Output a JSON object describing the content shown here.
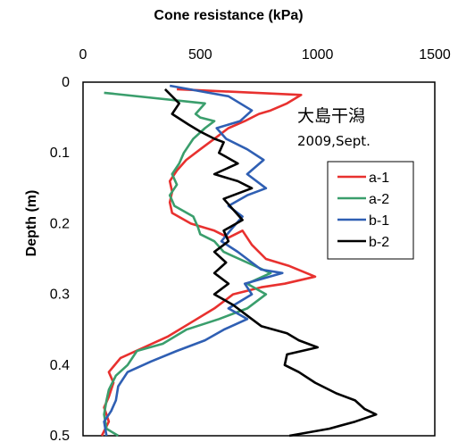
{
  "chart_data": {
    "type": "line",
    "title": "",
    "xlabel": "Cone resistance (kPa)",
    "ylabel": "Depth (m)",
    "xlim": [
      0,
      1500
    ],
    "ylim": [
      0,
      0.5
    ],
    "x_ticks": [
      "0",
      "500",
      "1000",
      "1500"
    ],
    "y_ticks": [
      "0",
      "0.1",
      "0.2",
      "0.3",
      "0.4",
      "0.5"
    ],
    "x_axis_position": "top",
    "y_axis_inverted": true,
    "grid": false,
    "legend_position": "right",
    "annotations": [
      "大島干潟",
      "2009,Sept."
    ],
    "series": [
      {
        "name": "a-1",
        "color": "#e8312f",
        "points": [
          [
            400,
            0.01
          ],
          [
            930,
            0.018
          ],
          [
            870,
            0.03
          ],
          [
            800,
            0.04
          ],
          [
            750,
            0.045
          ],
          [
            690,
            0.055
          ],
          [
            620,
            0.065
          ],
          [
            560,
            0.08
          ],
          [
            500,
            0.095
          ],
          [
            440,
            0.11
          ],
          [
            400,
            0.125
          ],
          [
            370,
            0.14
          ],
          [
            380,
            0.155
          ],
          [
            370,
            0.17
          ],
          [
            380,
            0.185
          ],
          [
            460,
            0.2
          ],
          [
            560,
            0.21
          ],
          [
            620,
            0.22
          ],
          [
            680,
            0.21
          ],
          [
            720,
            0.23
          ],
          [
            780,
            0.25
          ],
          [
            880,
            0.26
          ],
          [
            990,
            0.275
          ],
          [
            860,
            0.285
          ],
          [
            760,
            0.29
          ],
          [
            640,
            0.3
          ],
          [
            560,
            0.32
          ],
          [
            460,
            0.34
          ],
          [
            360,
            0.36
          ],
          [
            260,
            0.375
          ],
          [
            160,
            0.39
          ],
          [
            110,
            0.41
          ],
          [
            130,
            0.425
          ],
          [
            110,
            0.445
          ],
          [
            90,
            0.46
          ],
          [
            110,
            0.48
          ],
          [
            80,
            0.5
          ]
        ]
      },
      {
        "name": "a-2",
        "color": "#3a9e6c",
        "points": [
          [
            90,
            0.015
          ],
          [
            520,
            0.03
          ],
          [
            480,
            0.045
          ],
          [
            500,
            0.05
          ],
          [
            560,
            0.055
          ],
          [
            520,
            0.065
          ],
          [
            470,
            0.08
          ],
          [
            430,
            0.1
          ],
          [
            410,
            0.115
          ],
          [
            380,
            0.13
          ],
          [
            400,
            0.145
          ],
          [
            370,
            0.16
          ],
          [
            390,
            0.175
          ],
          [
            470,
            0.19
          ],
          [
            490,
            0.205
          ],
          [
            500,
            0.215
          ],
          [
            560,
            0.225
          ],
          [
            600,
            0.24
          ],
          [
            700,
            0.255
          ],
          [
            800,
            0.27
          ],
          [
            700,
            0.285
          ],
          [
            780,
            0.3
          ],
          [
            700,
            0.32
          ],
          [
            580,
            0.335
          ],
          [
            440,
            0.35
          ],
          [
            340,
            0.37
          ],
          [
            230,
            0.38
          ],
          [
            190,
            0.4
          ],
          [
            140,
            0.415
          ],
          [
            110,
            0.435
          ],
          [
            100,
            0.45
          ],
          [
            90,
            0.47
          ],
          [
            100,
            0.49
          ],
          [
            150,
            0.5
          ]
        ]
      },
      {
        "name": "b-1",
        "color": "#2f5fb3",
        "points": [
          [
            370,
            0.005
          ],
          [
            620,
            0.02
          ],
          [
            720,
            0.04
          ],
          [
            670,
            0.055
          ],
          [
            570,
            0.065
          ],
          [
            610,
            0.08
          ],
          [
            700,
            0.095
          ],
          [
            770,
            0.11
          ],
          [
            700,
            0.13
          ],
          [
            780,
            0.15
          ],
          [
            700,
            0.16
          ],
          [
            620,
            0.175
          ],
          [
            680,
            0.19
          ],
          [
            640,
            0.205
          ],
          [
            590,
            0.225
          ],
          [
            660,
            0.24
          ],
          [
            720,
            0.255
          ],
          [
            760,
            0.265
          ],
          [
            850,
            0.27
          ],
          [
            690,
            0.285
          ],
          [
            720,
            0.3
          ],
          [
            620,
            0.32
          ],
          [
            700,
            0.335
          ],
          [
            600,
            0.35
          ],
          [
            520,
            0.365
          ],
          [
            400,
            0.38
          ],
          [
            290,
            0.395
          ],
          [
            190,
            0.41
          ],
          [
            150,
            0.43
          ],
          [
            140,
            0.45
          ],
          [
            120,
            0.465
          ],
          [
            90,
            0.48
          ],
          [
            100,
            0.5
          ]
        ]
      },
      {
        "name": "b-2",
        "color": "#000000",
        "points": [
          [
            350,
            0.01
          ],
          [
            410,
            0.03
          ],
          [
            380,
            0.045
          ],
          [
            450,
            0.06
          ],
          [
            500,
            0.07
          ],
          [
            560,
            0.08
          ],
          [
            600,
            0.085
          ],
          [
            580,
            0.1
          ],
          [
            660,
            0.115
          ],
          [
            560,
            0.13
          ],
          [
            660,
            0.14
          ],
          [
            720,
            0.15
          ],
          [
            600,
            0.165
          ],
          [
            640,
            0.18
          ],
          [
            680,
            0.195
          ],
          [
            600,
            0.21
          ],
          [
            620,
            0.225
          ],
          [
            560,
            0.24
          ],
          [
            610,
            0.255
          ],
          [
            560,
            0.27
          ],
          [
            620,
            0.285
          ],
          [
            560,
            0.3
          ],
          [
            640,
            0.315
          ],
          [
            700,
            0.33
          ],
          [
            760,
            0.345
          ],
          [
            870,
            0.355
          ],
          [
            920,
            0.365
          ],
          [
            1000,
            0.375
          ],
          [
            870,
            0.385
          ],
          [
            860,
            0.4
          ],
          [
            920,
            0.41
          ],
          [
            990,
            0.425
          ],
          [
            1080,
            0.44
          ],
          [
            1160,
            0.45
          ],
          [
            1200,
            0.462
          ],
          [
            1250,
            0.47
          ],
          [
            1160,
            0.48
          ],
          [
            1050,
            0.49
          ],
          [
            880,
            0.5
          ]
        ]
      }
    ]
  }
}
